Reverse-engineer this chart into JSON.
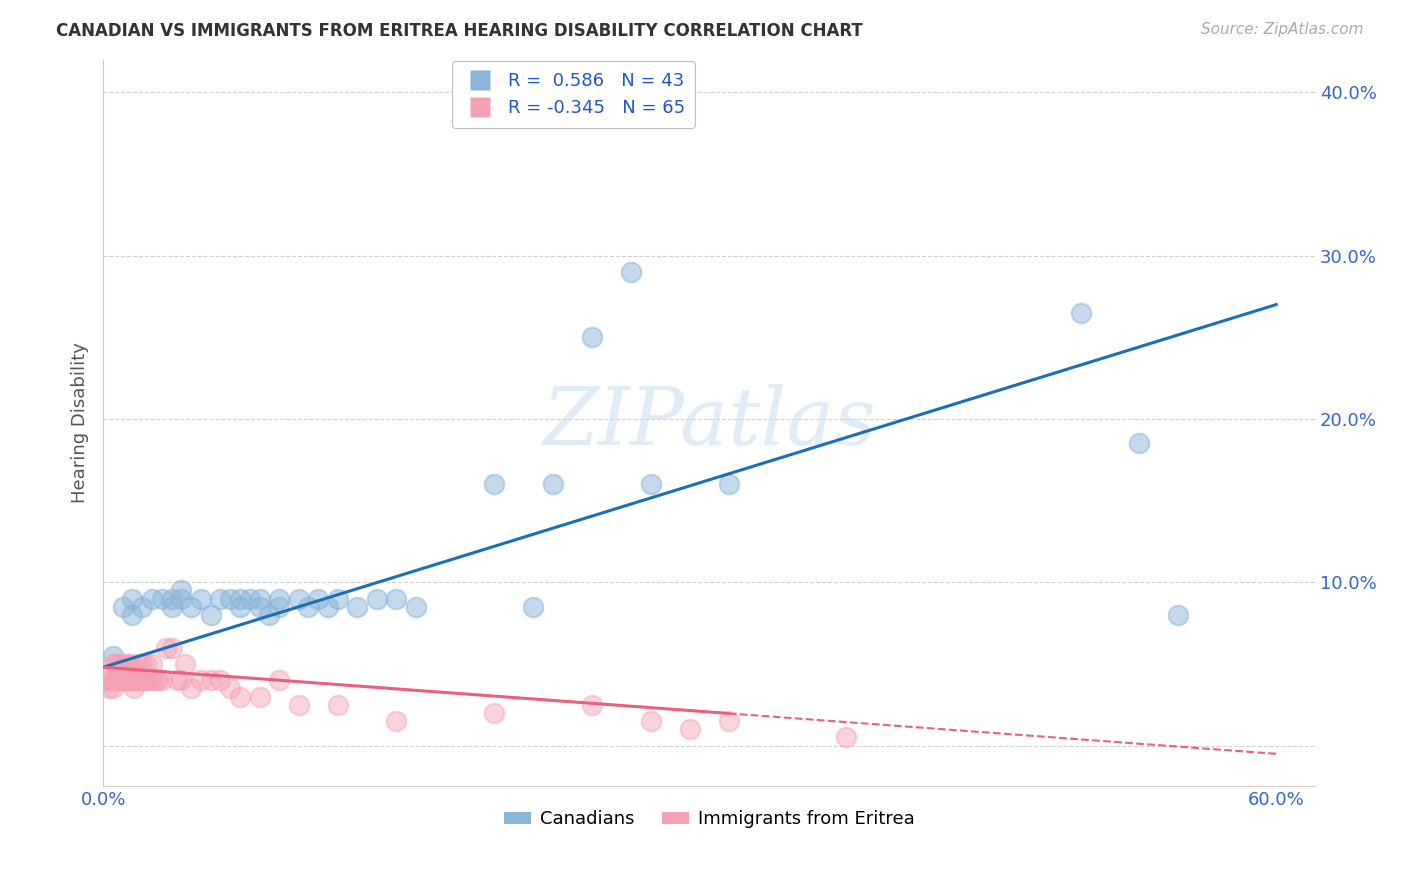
{
  "title": "CANADIAN VS IMMIGRANTS FROM ERITREA HEARING DISABILITY CORRELATION CHART",
  "source": "Source: ZipAtlas.com",
  "ylabel": "Hearing Disability",
  "xlim": [
    0.0,
    0.62
  ],
  "ylim": [
    -0.025,
    0.42
  ],
  "canadians_R": 0.586,
  "canadians_N": 43,
  "eritrea_R": -0.345,
  "eritrea_N": 65,
  "canadians_color": "#8ab4d8",
  "eritrea_color": "#f4a0b5",
  "trendline_canadian_color": "#1a6fb5",
  "trendline_eritrea_color": "#e8607a",
  "watermark": "ZIPatlas",
  "canadians_x": [
    0.005,
    0.01,
    0.015,
    0.015,
    0.02,
    0.025,
    0.03,
    0.035,
    0.035,
    0.04,
    0.04,
    0.045,
    0.05,
    0.055,
    0.06,
    0.065,
    0.07,
    0.07,
    0.075,
    0.08,
    0.08,
    0.085,
    0.09,
    0.09,
    0.1,
    0.105,
    0.11,
    0.115,
    0.12,
    0.13,
    0.14,
    0.15,
    0.16,
    0.2,
    0.22,
    0.23,
    0.25,
    0.27,
    0.28,
    0.32,
    0.5,
    0.53,
    0.55
  ],
  "canadians_y": [
    0.055,
    0.085,
    0.09,
    0.08,
    0.085,
    0.09,
    0.09,
    0.085,
    0.09,
    0.09,
    0.095,
    0.085,
    0.09,
    0.08,
    0.09,
    0.09,
    0.085,
    0.09,
    0.09,
    0.085,
    0.09,
    0.08,
    0.085,
    0.09,
    0.09,
    0.085,
    0.09,
    0.085,
    0.09,
    0.085,
    0.09,
    0.09,
    0.085,
    0.16,
    0.085,
    0.16,
    0.25,
    0.29,
    0.16,
    0.16,
    0.265,
    0.185,
    0.08
  ],
  "eritrea_x": [
    0.002,
    0.003,
    0.004,
    0.005,
    0.005,
    0.005,
    0.006,
    0.006,
    0.007,
    0.007,
    0.008,
    0.008,
    0.009,
    0.009,
    0.01,
    0.01,
    0.01,
    0.011,
    0.012,
    0.012,
    0.013,
    0.013,
    0.014,
    0.014,
    0.015,
    0.015,
    0.016,
    0.016,
    0.017,
    0.018,
    0.018,
    0.019,
    0.02,
    0.02,
    0.021,
    0.022,
    0.022,
    0.023,
    0.025,
    0.025,
    0.027,
    0.028,
    0.03,
    0.032,
    0.035,
    0.038,
    0.04,
    0.042,
    0.045,
    0.05,
    0.055,
    0.06,
    0.065,
    0.07,
    0.08,
    0.09,
    0.1,
    0.12,
    0.15,
    0.2,
    0.25,
    0.28,
    0.3,
    0.32,
    0.38
  ],
  "eritrea_y": [
    0.04,
    0.035,
    0.04,
    0.05,
    0.04,
    0.035,
    0.04,
    0.05,
    0.045,
    0.04,
    0.04,
    0.05,
    0.04,
    0.045,
    0.04,
    0.05,
    0.04,
    0.045,
    0.04,
    0.05,
    0.04,
    0.045,
    0.04,
    0.05,
    0.04,
    0.045,
    0.04,
    0.035,
    0.04,
    0.04,
    0.05,
    0.04,
    0.04,
    0.05,
    0.04,
    0.05,
    0.04,
    0.04,
    0.04,
    0.05,
    0.04,
    0.04,
    0.04,
    0.06,
    0.06,
    0.04,
    0.04,
    0.05,
    0.035,
    0.04,
    0.04,
    0.04,
    0.035,
    0.03,
    0.03,
    0.04,
    0.025,
    0.025,
    0.015,
    0.02,
    0.025,
    0.015,
    0.01,
    0.015,
    0.005
  ],
  "background_color": "#ffffff",
  "grid_color": "#d0d0d0"
}
